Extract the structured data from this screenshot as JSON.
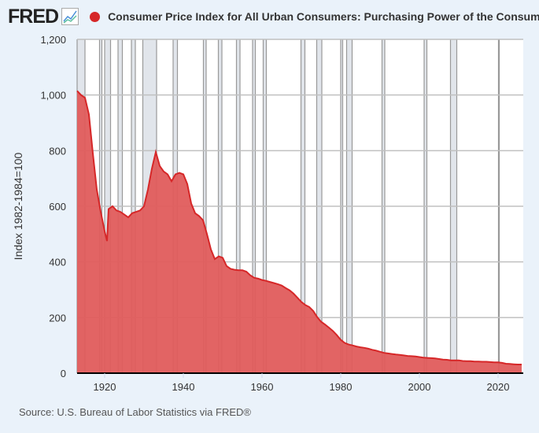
{
  "header": {
    "logo": "FRED",
    "title": "Consumer Price Index for All Urban Consumers: Purchasing Power of the Consumer D",
    "series_color": "#d62728"
  },
  "source": "Source: U.S. Bureau of Labor Statistics via FRED®",
  "chart_data": {
    "type": "area",
    "ylabel": "Index 1982-1984=100",
    "xlim": [
      1913,
      2026.4
    ],
    "ylim": [
      0,
      1200
    ],
    "yticks": [
      0,
      200,
      400,
      600,
      800,
      1000,
      1200
    ],
    "ytick_labels": [
      "0",
      "200",
      "400",
      "600",
      "800",
      "1,000",
      "1,200"
    ],
    "xticks": [
      1920,
      1940,
      1960,
      1980,
      2000,
      2020
    ],
    "xtick_labels": [
      "1920",
      "1940",
      "1960",
      "1980",
      "2000",
      "2020"
    ],
    "grid": true,
    "line_color": "#d62728",
    "fill_color": "#e05c5c",
    "recessions": [
      [
        1913,
        1915
      ],
      [
        1918.7,
        1919.3
      ],
      [
        1920,
        1921.5
      ],
      [
        1923.4,
        1924.5
      ],
      [
        1926.8,
        1927.8
      ],
      [
        1929.7,
        1933.2
      ],
      [
        1937.4,
        1938.5
      ],
      [
        1945.1,
        1945.8
      ],
      [
        1948.9,
        1949.8
      ],
      [
        1953.5,
        1954.4
      ],
      [
        1957.6,
        1958.3
      ],
      [
        1960.3,
        1961.1
      ],
      [
        1969.9,
        1970.9
      ],
      [
        1973.9,
        1975.2
      ],
      [
        1980,
        1980.5
      ],
      [
        1981.5,
        1982.9
      ],
      [
        1990.5,
        1991.2
      ],
      [
        2001.2,
        2001.9
      ],
      [
        2007.9,
        2009.5
      ],
      [
        2020.1,
        2020.3
      ]
    ],
    "x": [
      1913,
      1914,
      1915,
      1916,
      1917,
      1918,
      1919,
      1920,
      1920.6,
      1921,
      1922,
      1923,
      1924,
      1925,
      1926,
      1927,
      1928,
      1929,
      1930,
      1931,
      1932,
      1933,
      1934,
      1935,
      1936,
      1937,
      1938,
      1939,
      1940,
      1941,
      1942,
      1943,
      1944,
      1945,
      1946,
      1947,
      1948,
      1949,
      1950,
      1951,
      1952,
      1953,
      1954,
      1955,
      1956,
      1957,
      1958,
      1959,
      1960,
      1961,
      1962,
      1963,
      1964,
      1965,
      1966,
      1967,
      1968,
      1969,
      1970,
      1971,
      1972,
      1973,
      1974,
      1975,
      1976,
      1977,
      1978,
      1979,
      1980,
      1981,
      1982,
      1983,
      1984,
      1985,
      1986,
      1987,
      1988,
      1989,
      1990,
      1991,
      1992,
      1993,
      1994,
      1995,
      1996,
      1997,
      1998,
      1999,
      2000,
      2001,
      2002,
      2003,
      2004,
      2005,
      2006,
      2007,
      2008,
      2009,
      2010,
      2011,
      2012,
      2013,
      2014,
      2015,
      2016,
      2017,
      2018,
      2019,
      2020,
      2021,
      2022,
      2023,
      2024,
      2025,
      2026
    ],
    "values": [
      1015,
      1000,
      990,
      930,
      790,
      660,
      580,
      510,
      475,
      590,
      600,
      585,
      580,
      570,
      560,
      575,
      580,
      585,
      600,
      660,
      735,
      795,
      745,
      725,
      715,
      690,
      715,
      720,
      715,
      680,
      610,
      575,
      565,
      550,
      500,
      445,
      410,
      420,
      415,
      385,
      375,
      372,
      370,
      370,
      365,
      352,
      343,
      340,
      335,
      332,
      328,
      324,
      320,
      315,
      306,
      298,
      286,
      271,
      256,
      245,
      238,
      224,
      202,
      185,
      175,
      164,
      152,
      137,
      120,
      109,
      103,
      100,
      96,
      93,
      91,
      88,
      84,
      81,
      77,
      73,
      71,
      69,
      67,
      66,
      64,
      62,
      61,
      60,
      58,
      56,
      55,
      54,
      53,
      51,
      49,
      48,
      46,
      46,
      46,
      44,
      43,
      43,
      42,
      42,
      41,
      41,
      40,
      39,
      39,
      37,
      34,
      33,
      32,
      31,
      31
    ]
  }
}
